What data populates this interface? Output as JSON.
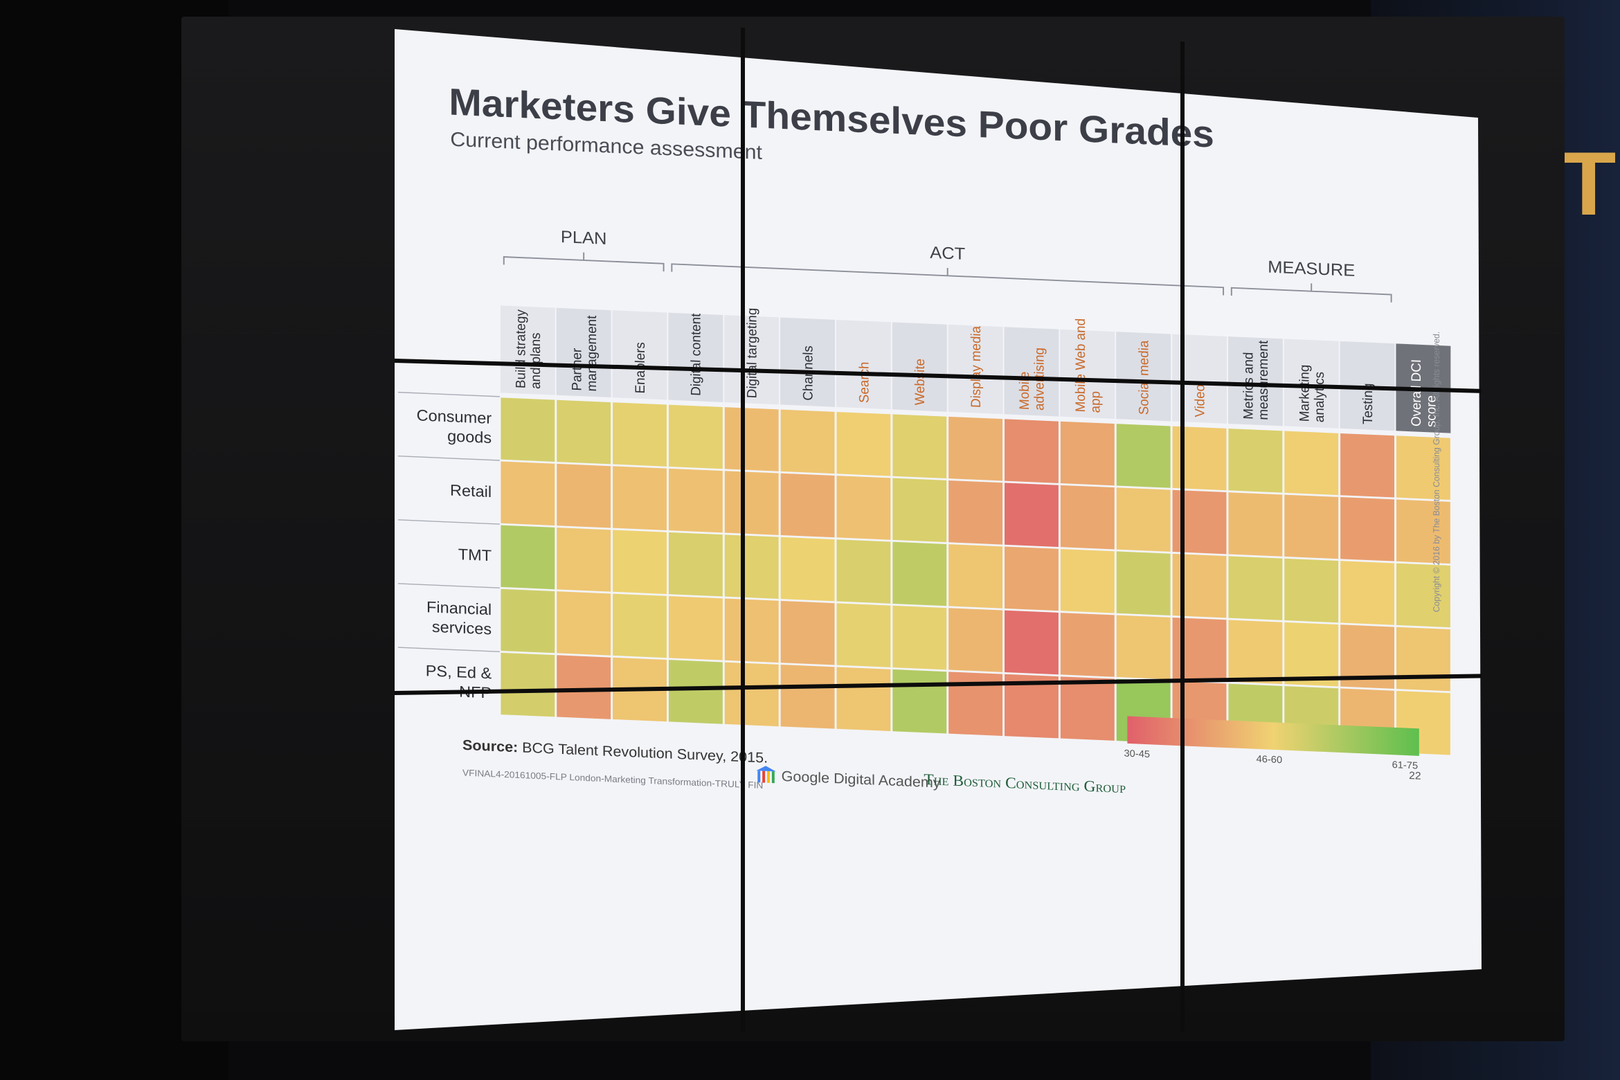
{
  "slide": {
    "title": "Marketers Give Themselves Poor Grades",
    "subtitle": "Current performance assessment",
    "groups": [
      {
        "label": "PLAN",
        "from": 0,
        "to": 2
      },
      {
        "label": "ACT",
        "from": 3,
        "to": 12
      },
      {
        "label": "MEASURE",
        "from": 13,
        "to": 15
      }
    ],
    "columns": [
      {
        "lines": [
          "Build strategy",
          "and plans"
        ],
        "highlight": false
      },
      {
        "lines": [
          "Partner",
          "management"
        ],
        "highlight": false
      },
      {
        "lines": [
          "Enablers"
        ],
        "highlight": false
      },
      {
        "lines": [
          "Digital content"
        ],
        "highlight": false
      },
      {
        "lines": [
          "Digital targeting"
        ],
        "highlight": false
      },
      {
        "lines": [
          "Channels"
        ],
        "highlight": false
      },
      {
        "lines": [
          "Search"
        ],
        "highlight": true
      },
      {
        "lines": [
          "Website"
        ],
        "highlight": true
      },
      {
        "lines": [
          "Display media"
        ],
        "highlight": true
      },
      {
        "lines": [
          "Mobile",
          "advertising"
        ],
        "highlight": true
      },
      {
        "lines": [
          "Mobile Web and",
          "app"
        ],
        "highlight": true
      },
      {
        "lines": [
          "Social media"
        ],
        "highlight": true
      },
      {
        "lines": [
          "Video"
        ],
        "highlight": true
      },
      {
        "lines": [
          "Metrics and",
          "measurement"
        ],
        "highlight": false
      },
      {
        "lines": [
          "Marketing",
          "analytics"
        ],
        "highlight": false
      },
      {
        "lines": [
          "Testing"
        ],
        "highlight": false
      },
      {
        "lines": [
          "Overall DCI",
          "score"
        ],
        "highlight": false,
        "dark": true
      }
    ],
    "rows": [
      {
        "lines": [
          "Consumer",
          "goods"
        ],
        "values": [
          57,
          56,
          54,
          54,
          48,
          50,
          52,
          55,
          46,
          39,
          44,
          62,
          51,
          56,
          52,
          41,
          51
        ]
      },
      {
        "lines": [
          "Retail"
        ],
        "values": [
          49,
          47,
          49,
          49,
          48,
          45,
          49,
          56,
          43,
          33,
          44,
          50,
          41,
          48,
          47,
          42,
          48
        ]
      },
      {
        "lines": [
          "TMT"
        ],
        "values": [
          62,
          50,
          53,
          56,
          55,
          53,
          56,
          60,
          50,
          44,
          52,
          58,
          49,
          56,
          56,
          52,
          55
        ]
      },
      {
        "lines": [
          "Financial",
          "services"
        ],
        "values": [
          58,
          50,
          54,
          51,
          49,
          46,
          54,
          54,
          47,
          33,
          43,
          50,
          41,
          51,
          53,
          46,
          50
        ]
      },
      {
        "lines": [
          "PS, Ed &",
          "NFP"
        ],
        "values": [
          57,
          41,
          50,
          60,
          50,
          47,
          50,
          62,
          40,
          38,
          39,
          66,
          41,
          60,
          58,
          47,
          52
        ]
      }
    ],
    "legend": {
      "low": "30-45",
      "mid": "46-60",
      "high": "61-75",
      "colors": [
        "#e0606a",
        "#f0d272",
        "#5dbf4e"
      ]
    },
    "source_label": "Source:",
    "source_text": "BCG Talent Revolution Survey, 2015.",
    "page_number": "22",
    "copyright": "Copyright © 2016 by The Boston Consulting Group, Inc. All rights reserved.",
    "file_label": "VFINAL4-20161005-FLP London-Marketing Transformation-TRULY FIN",
    "logo_google": "Google Digital Academy",
    "logo_bcg": "The Boston Consulting Group"
  },
  "wall_sign": "T"
}
